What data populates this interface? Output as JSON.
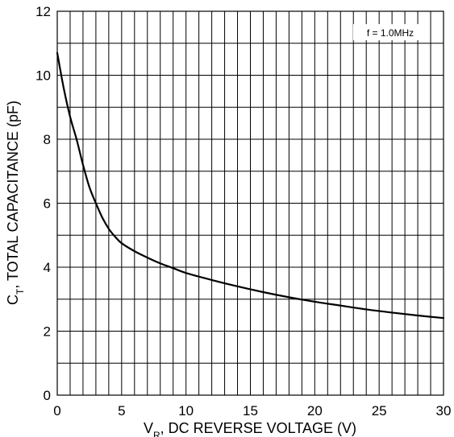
{
  "chart_data": {
    "type": "line",
    "title": "",
    "annotation": "f = 1.0MHz",
    "xlabel": {
      "prefix": "V",
      "subscript": "R",
      "rest": ", DC REVERSE VOLTAGE (V)"
    },
    "ylabel": {
      "prefix": "C",
      "subscript": "T",
      "rest": ", TOTAL CAPACITANCE (pF)"
    },
    "xlim": [
      0,
      30
    ],
    "ylim": [
      0,
      12
    ],
    "x_ticks": [
      "0",
      "5",
      "10",
      "15",
      "20",
      "25",
      "30"
    ],
    "y_ticks": [
      "0",
      "2",
      "4",
      "6",
      "8",
      "10",
      "12"
    ],
    "x_grid_step": 1,
    "y_grid_step": 1,
    "grid": true,
    "series": [
      {
        "x": [
          0,
          0.5,
          1,
          1.5,
          2,
          2.5,
          3,
          3.5,
          4,
          4.5,
          5,
          6,
          7,
          8,
          9,
          10,
          12,
          14,
          16,
          18,
          20,
          22,
          24,
          26,
          28,
          30
        ],
        "y": [
          10.7,
          9.6,
          8.7,
          8.0,
          7.2,
          6.5,
          6.0,
          5.55,
          5.2,
          4.95,
          4.75,
          4.5,
          4.3,
          4.12,
          3.97,
          3.82,
          3.6,
          3.4,
          3.22,
          3.06,
          2.92,
          2.8,
          2.68,
          2.58,
          2.49,
          2.41
        ]
      }
    ],
    "colors": {
      "line": "#000000",
      "grid": "#000000",
      "background": "#ffffff"
    }
  }
}
